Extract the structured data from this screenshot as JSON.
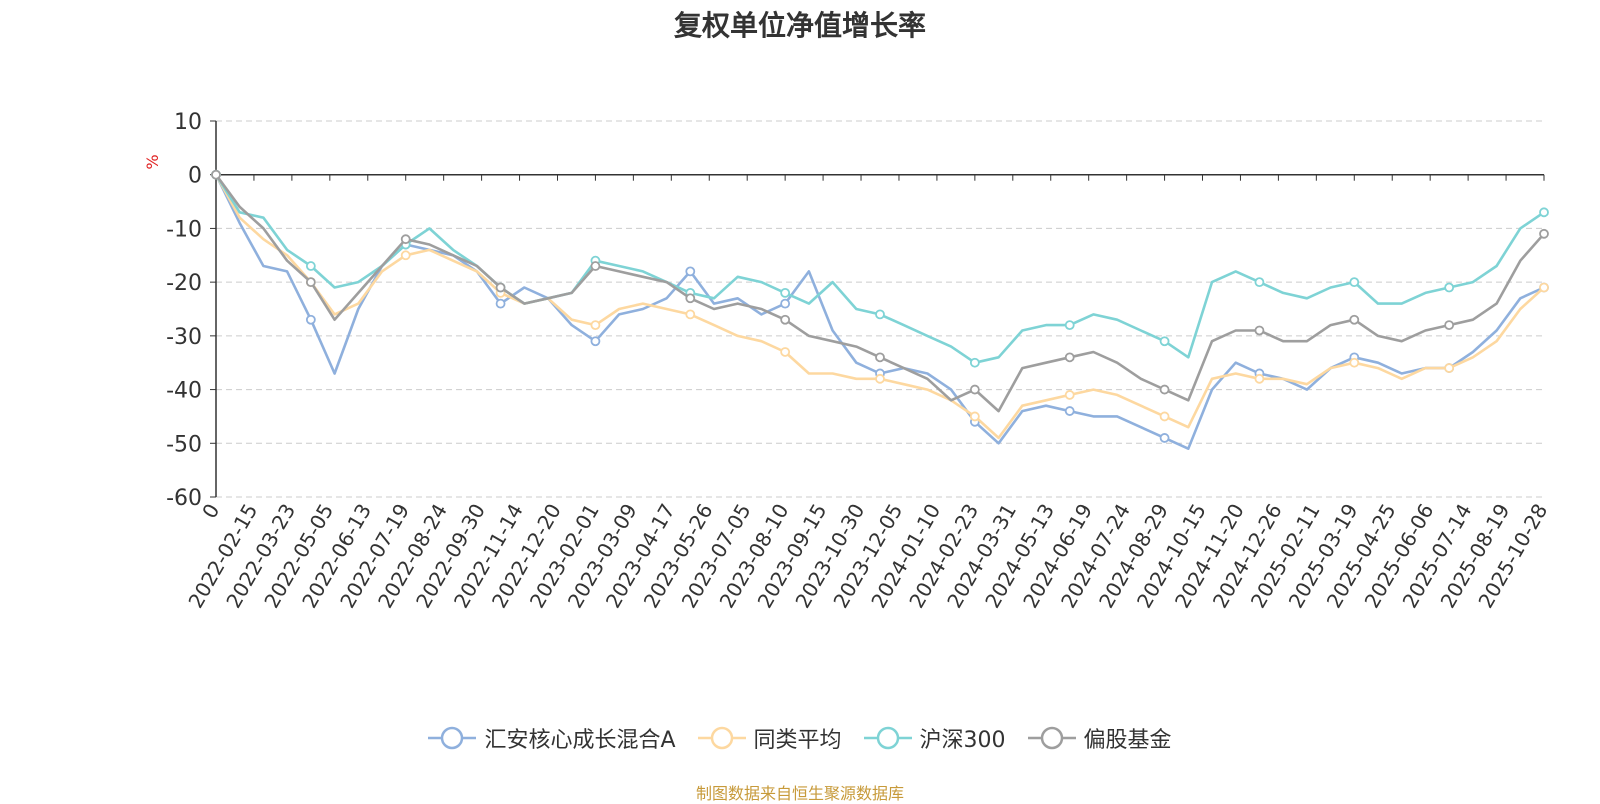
{
  "chart_data": {
    "type": "line",
    "title": "复权单位净值增长率",
    "ylabel": "%",
    "ylim": [
      -60,
      10
    ],
    "yticks": [
      "10",
      "0",
      "-10",
      "-20",
      "-30",
      "-40",
      "-50",
      "-60"
    ],
    "x_ticks": [
      "0",
      "2022-02-15",
      "2022-03-23",
      "2022-05-05",
      "2022-06-13",
      "2022-07-19",
      "2022-08-24",
      "2022-09-30",
      "2022-11-14",
      "2022-12-20",
      "2023-02-01",
      "2023-03-09",
      "2023-04-17",
      "2023-05-26",
      "2023-07-05",
      "2023-08-10",
      "2023-09-15",
      "2023-10-30",
      "2023-12-05",
      "2024-01-10",
      "2024-02-23",
      "2024-03-31",
      "2024-05-13",
      "2024-06-19",
      "2024-07-24",
      "2024-08-29",
      "2024-10-15",
      "2024-11-20",
      "2024-12-26",
      "2025-02-11",
      "2025-03-19",
      "2025-04-25",
      "2025-06-06",
      "2025-07-14",
      "2025-08-19",
      "2025-10-28"
    ],
    "legend_position": "bottom-center",
    "grid": true,
    "series": [
      {
        "name": "汇安核心成长混合A",
        "color": "#8fb0dd",
        "values": [
          0,
          -9,
          -17,
          -18,
          -27,
          -37,
          -25,
          -17,
          -13,
          -14,
          -15,
          -18,
          -24,
          -21,
          -23,
          -28,
          -31,
          -26,
          -25,
          -23,
          -18,
          -24,
          -23,
          -26,
          -24,
          -18,
          -29,
          -35,
          -37,
          -36,
          -37,
          -40,
          -46,
          -50,
          -44,
          -43,
          -44,
          -45,
          -45,
          -47,
          -49,
          -51,
          -40,
          -35,
          -37,
          -38,
          -40,
          -36,
          -34,
          -35,
          -37,
          -36,
          -36,
          -33,
          -29,
          -23,
          -21
        ]
      },
      {
        "name": "同类平均",
        "color": "#fdd8a0",
        "values": [
          0,
          -8,
          -12,
          -15,
          -20,
          -26,
          -24,
          -18,
          -15,
          -14,
          -16,
          -18,
          -22,
          -24,
          -23,
          -27,
          -28,
          -25,
          -24,
          -25,
          -26,
          -28,
          -30,
          -31,
          -33,
          -37,
          -37,
          -38,
          -38,
          -39,
          -40,
          -42,
          -45,
          -49,
          -43,
          -42,
          -41,
          -40,
          -41,
          -43,
          -45,
          -47,
          -38,
          -37,
          -38,
          -38,
          -39,
          -36,
          -35,
          -36,
          -38,
          -36,
          -36,
          -34,
          -31,
          -25,
          -21
        ]
      },
      {
        "name": "沪深300",
        "color": "#7ed3d5",
        "values": [
          0,
          -7,
          -8,
          -14,
          -17,
          -21,
          -20,
          -17,
          -13,
          -10,
          -14,
          -17,
          -21,
          -24,
          -23,
          -22,
          -16,
          -17,
          -18,
          -20,
          -22,
          -23,
          -19,
          -20,
          -22,
          -24,
          -20,
          -25,
          -26,
          -28,
          -30,
          -32,
          -35,
          -34,
          -29,
          -28,
          -28,
          -26,
          -27,
          -29,
          -31,
          -34,
          -20,
          -18,
          -20,
          -22,
          -23,
          -21,
          -20,
          -24,
          -24,
          -22,
          -21,
          -20,
          -17,
          -10,
          -7
        ]
      },
      {
        "name": "偏股基金",
        "color": "#9e9e9e",
        "values": [
          0,
          -6,
          -10,
          -16,
          -20,
          -27,
          -22,
          -17,
          -12,
          -13,
          -15,
          -17,
          -21,
          -24,
          -23,
          -22,
          -17,
          -18,
          -19,
          -20,
          -23,
          -25,
          -24,
          -25,
          -27,
          -30,
          -31,
          -32,
          -34,
          -36,
          -38,
          -42,
          -40,
          -44,
          -36,
          -35,
          -34,
          -33,
          -35,
          -38,
          -40,
          -42,
          -31,
          -29,
          -29,
          -31,
          -31,
          -28,
          -27,
          -30,
          -31,
          -29,
          -28,
          -27,
          -24,
          -16,
          -11
        ]
      }
    ]
  },
  "source_text": "制图数据来自恒生聚源数据库"
}
